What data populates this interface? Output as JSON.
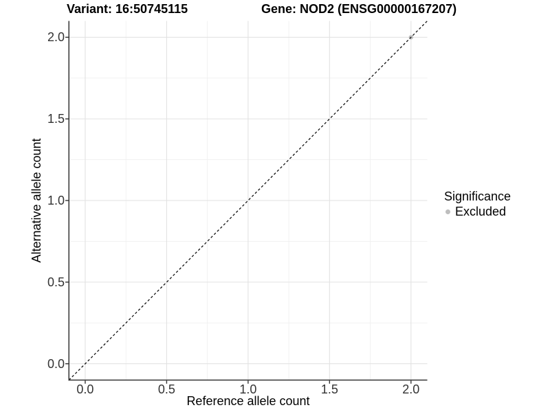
{
  "chart_data": {
    "type": "scatter",
    "title_left": "Variant: 16:50745115",
    "title_right": "Gene: NOD2 (ENSG00000167207)",
    "xlabel": "Reference allele count",
    "ylabel": "Alternative allele count",
    "xlim": [
      -0.1,
      2.1
    ],
    "ylim": [
      -0.1,
      2.1
    ],
    "xticks": {
      "values": [
        0,
        0.5,
        1,
        1.5,
        2
      ],
      "labels": [
        "0.0",
        "0.5",
        "1.0",
        "1.5",
        "2.0"
      ]
    },
    "yticks": {
      "values": [
        0,
        0.5,
        1,
        1.5,
        2
      ],
      "labels": [
        "0.0",
        "0.5",
        "1.0",
        "1.5",
        "2.0"
      ]
    },
    "minor_ticks": [
      0.25,
      0.75,
      1.25,
      1.75
    ],
    "grid": {
      "shown": true,
      "major_color": "#e2e2e2",
      "minor_color": "#efefef"
    },
    "reference_line": {
      "type": "identity y=x",
      "style": "dashed",
      "color": "#111111"
    },
    "series": [
      {
        "name": "Excluded",
        "color": "#bebebe",
        "points": [
          {
            "x": 2.0,
            "y": 2.0
          }
        ]
      }
    ],
    "legend": {
      "title": "Significance",
      "position": "right",
      "entries": [
        {
          "label": "Excluded",
          "color": "#bebebe"
        }
      ]
    },
    "axis_color": "#333333",
    "background": "#ffffff"
  }
}
